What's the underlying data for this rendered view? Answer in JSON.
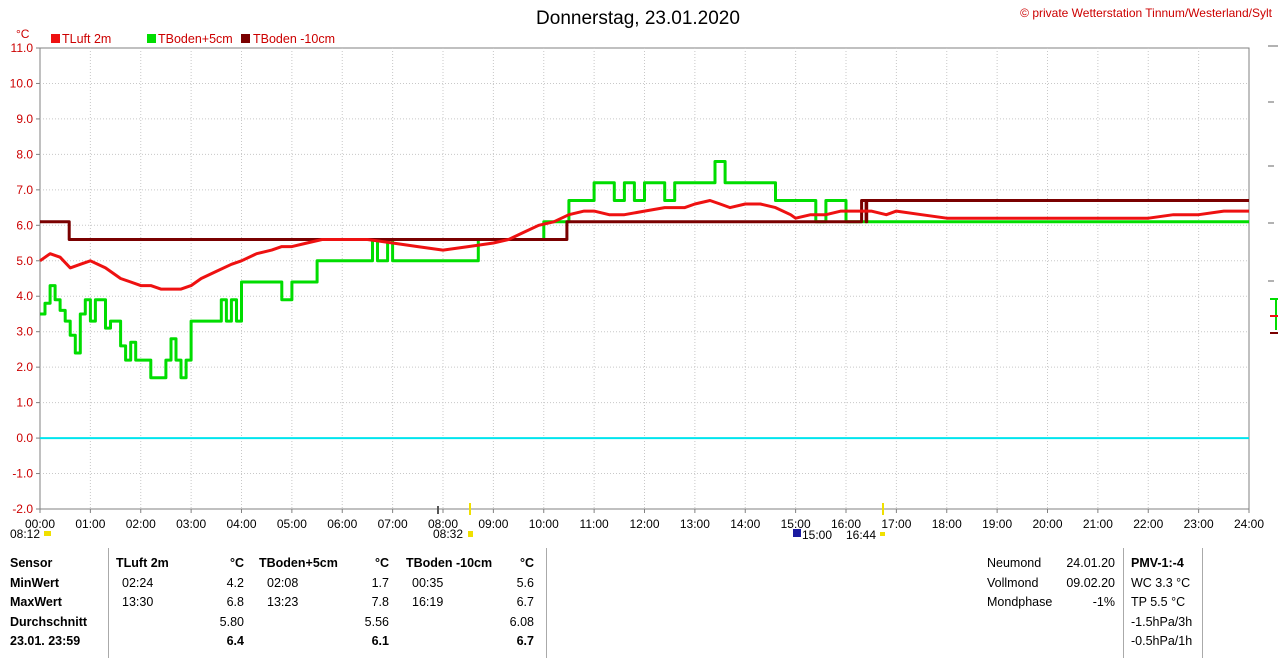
{
  "chart_data": {
    "type": "line",
    "title": "Donnerstag, 23.01.2020",
    "copyright": "© private Wetterstation Tinnum/Westerland/Sylt",
    "yunit": "°C",
    "ylim": [
      -2.0,
      11.0
    ],
    "yticks": [
      "11.0",
      "10.0",
      "9.0",
      "8.0",
      "7.0",
      "6.0",
      "5.0",
      "4.0",
      "3.0",
      "2.0",
      "1.0",
      "0.0",
      "-1.0",
      "-2.0"
    ],
    "xlim": [
      0,
      24
    ],
    "xticks": [
      "00:00",
      "01:00",
      "02:00",
      "03:00",
      "04:00",
      "05:00",
      "06:00",
      "07:00",
      "08:00",
      "09:00",
      "10:00",
      "11:00",
      "12:00",
      "13:00",
      "14:00",
      "15:00",
      "16:00",
      "17:00",
      "18:00",
      "19:00",
      "20:00",
      "21:00",
      "22:00",
      "23:00",
      "24:00"
    ],
    "grid": true,
    "legend_position": "top-left",
    "series": [
      {
        "name": "TLuft 2m",
        "color": "#ee1111",
        "x": [
          0,
          0.2,
          0.4,
          0.6,
          0.8,
          1.0,
          1.3,
          1.6,
          1.8,
          2.0,
          2.2,
          2.4,
          2.6,
          2.8,
          3.0,
          3.2,
          3.5,
          3.8,
          4.0,
          4.3,
          4.6,
          4.8,
          5.0,
          5.3,
          5.6,
          6.0,
          6.5,
          7.0,
          7.5,
          8.0,
          8.5,
          9.0,
          9.3,
          9.6,
          9.9,
          10.2,
          10.5,
          10.8,
          11.0,
          11.3,
          11.6,
          12.0,
          12.4,
          12.8,
          13.0,
          13.3,
          13.5,
          13.7,
          14.0,
          14.3,
          14.6,
          14.9,
          15.0,
          15.3,
          15.6,
          15.9,
          16.2,
          16.5,
          16.8,
          17.0,
          17.5,
          18.0,
          19.0,
          20.0,
          21.0,
          22.0,
          22.5,
          23.0,
          23.5,
          24.0
        ],
        "y": [
          5.0,
          5.2,
          5.1,
          4.8,
          4.9,
          5.0,
          4.8,
          4.5,
          4.4,
          4.3,
          4.3,
          4.2,
          4.2,
          4.2,
          4.3,
          4.5,
          4.7,
          4.9,
          5.0,
          5.2,
          5.3,
          5.4,
          5.4,
          5.5,
          5.6,
          5.6,
          5.6,
          5.5,
          5.4,
          5.3,
          5.4,
          5.5,
          5.6,
          5.8,
          6.0,
          6.1,
          6.3,
          6.4,
          6.4,
          6.3,
          6.3,
          6.4,
          6.5,
          6.5,
          6.6,
          6.7,
          6.6,
          6.5,
          6.6,
          6.6,
          6.5,
          6.3,
          6.2,
          6.3,
          6.3,
          6.4,
          6.4,
          6.4,
          6.3,
          6.4,
          6.3,
          6.2,
          6.2,
          6.2,
          6.2,
          6.2,
          6.3,
          6.3,
          6.4,
          6.4
        ]
      },
      {
        "name": "TBoden+5cm",
        "color": "#00dd00",
        "x": [
          0,
          0.1,
          0.2,
          0.3,
          0.4,
          0.5,
          0.6,
          0.7,
          0.8,
          0.9,
          1.0,
          1.1,
          1.2,
          1.3,
          1.4,
          1.5,
          1.6,
          1.7,
          1.8,
          1.9,
          2.0,
          2.1,
          2.2,
          2.3,
          2.4,
          2.5,
          2.6,
          2.7,
          2.8,
          2.9,
          3.0,
          3.2,
          3.4,
          3.6,
          3.7,
          3.8,
          3.9,
          4.0,
          4.5,
          4.7,
          4.8,
          5.0,
          5.5,
          6.0,
          6.5,
          6.6,
          6.7,
          6.8,
          6.9,
          7.0,
          7.5,
          8.0,
          8.5,
          8.7,
          9.0,
          9.3,
          9.6,
          10.0,
          10.4,
          10.5,
          10.8,
          11.0,
          11.2,
          11.4,
          11.6,
          11.8,
          12.0,
          12.2,
          12.4,
          12.6,
          12.8,
          13.0,
          13.2,
          13.3,
          13.4,
          13.5,
          13.6,
          14.0,
          14.5,
          14.6,
          14.8,
          15.0,
          15.3,
          15.4,
          15.6,
          15.9,
          16.0,
          16.5,
          17.0,
          18.0,
          19.0,
          20.0,
          21.0,
          22.0,
          23.0,
          24.0
        ],
        "y": [
          3.5,
          3.8,
          4.3,
          3.9,
          3.6,
          3.3,
          2.9,
          2.4,
          3.5,
          3.9,
          3.3,
          3.9,
          3.9,
          3.1,
          3.3,
          3.3,
          2.6,
          2.2,
          2.7,
          2.2,
          2.2,
          2.2,
          1.7,
          1.7,
          1.7,
          2.2,
          2.8,
          2.2,
          1.7,
          2.2,
          3.3,
          3.3,
          3.3,
          3.9,
          3.3,
          3.9,
          3.3,
          4.4,
          4.4,
          4.4,
          3.9,
          4.4,
          5.0,
          5.0,
          5.0,
          5.6,
          5.0,
          5.0,
          5.6,
          5.0,
          5.0,
          5.0,
          5.0,
          5.6,
          5.6,
          5.6,
          5.6,
          6.1,
          6.1,
          6.7,
          6.7,
          7.2,
          7.2,
          6.7,
          7.2,
          6.7,
          7.2,
          7.2,
          6.7,
          7.2,
          7.2,
          7.2,
          7.2,
          7.2,
          7.8,
          7.8,
          7.2,
          7.2,
          7.2,
          6.7,
          6.7,
          6.7,
          6.7,
          6.1,
          6.7,
          6.7,
          6.1,
          6.1,
          6.1,
          6.1,
          6.1,
          6.1,
          6.1,
          6.1,
          6.1,
          6.1
        ]
      },
      {
        "name": "TBoden -10cm",
        "color": "#7a0000",
        "x": [
          0,
          0.57,
          0.58,
          6.0,
          10.45,
          10.46,
          16.3,
          16.31,
          16.4,
          16.41,
          24.0
        ],
        "y": [
          6.1,
          6.1,
          5.6,
          5.6,
          5.6,
          6.1,
          6.1,
          6.7,
          6.1,
          6.7,
          6.7
        ]
      },
      {
        "name": "",
        "color": "#00e5ee",
        "x": [
          0,
          24
        ],
        "y": [
          0.0,
          0.0
        ]
      }
    ]
  },
  "markers": {
    "sunrise": "08:12",
    "solar_noon": "08:32",
    "sunset_a": "15:00",
    "sunset_b": "16:44"
  },
  "table": {
    "col_sensor": {
      "header": "Sensor",
      "rows": [
        "MinWert",
        "MaxWert",
        "Durchschnitt",
        "23.01. 23:59"
      ]
    },
    "groups": [
      {
        "header": "TLuft 2m",
        "unit": "°C",
        "min_time": "02:24",
        "min_val": "4.2",
        "max_time": "13:30",
        "max_val": "6.8",
        "avg": "5.80",
        "last": "6.4"
      },
      {
        "header": "TBoden+5cm",
        "unit": "°C",
        "min_time": "02:08",
        "min_val": "1.7",
        "max_time": "13:23",
        "max_val": "7.8",
        "avg": "5.56",
        "last": "6.1"
      },
      {
        "header": "TBoden -10cm",
        "unit": "°C",
        "min_time": "00:35",
        "min_val": "5.6",
        "max_time": "16:19",
        "max_val": "6.7",
        "avg": "6.08",
        "last": "6.7"
      }
    ]
  },
  "moon": {
    "neumond_label": "Neumond",
    "neumond_date": "24.01.20",
    "vollmond_label": "Vollmond",
    "vollmond_date": "09.02.20",
    "phase_label": "Mondphase",
    "phase_value": "-1%"
  },
  "pmv": {
    "header": "PMV-1:-4",
    "wc": "WC 3.3 °C",
    "tp": "TP 5.5 °C",
    "p3h": "-1.5hPa/3h",
    "p1h": "-0.5hPa/1h"
  }
}
